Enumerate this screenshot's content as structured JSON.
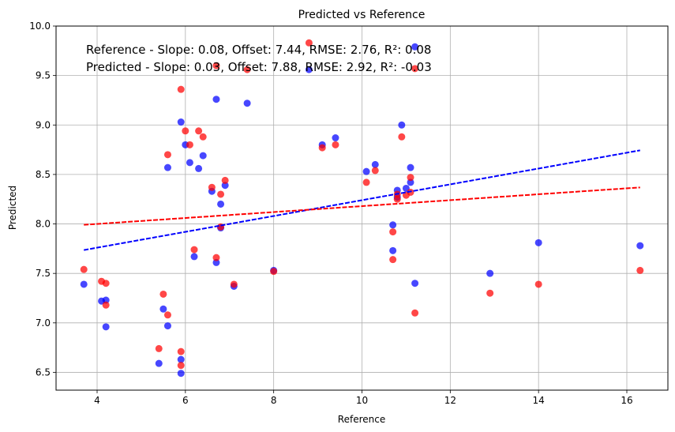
{
  "chart_data": {
    "type": "scatter",
    "title": "Predicted vs Reference",
    "xlabel": "Reference",
    "ylabel": "Predicted",
    "xlim": [
      3.07,
      16.93
    ],
    "ylim": [
      6.32,
      10.0
    ],
    "xticks": [
      4,
      6,
      8,
      10,
      12,
      14,
      16
    ],
    "yticks": [
      6.5,
      7.0,
      7.5,
      8.0,
      8.5,
      9.0,
      9.5,
      10.0
    ],
    "ytick_labels": [
      "6.5",
      "7.0",
      "7.5",
      "8.0",
      "8.5",
      "9.0",
      "9.5",
      "10.0"
    ],
    "grid": true,
    "annotations": [
      "Reference - Slope: 0.08, Offset: 7.44, RMSE: 2.76, R²: 0.08",
      "Predicted - Slope: 0.03, Offset: 7.88, RMSE: 2.92, R²: -0.03"
    ],
    "colors": {
      "reference": "#0000ff",
      "predicted": "#ff0000"
    },
    "series": [
      {
        "values": [
          [
            3.7,
            7.39
          ],
          [
            4.1,
            7.22
          ],
          [
            4.2,
            7.23
          ],
          [
            4.2,
            6.96
          ],
          [
            5.4,
            6.59
          ],
          [
            5.5,
            7.14
          ],
          [
            5.6,
            6.97
          ],
          [
            5.6,
            8.57
          ],
          [
            5.9,
            6.63
          ],
          [
            5.9,
            6.49
          ],
          [
            5.9,
            9.03
          ],
          [
            6.0,
            8.8
          ],
          [
            6.1,
            8.62
          ],
          [
            6.2,
            7.67
          ],
          [
            6.3,
            8.56
          ],
          [
            6.4,
            8.69
          ],
          [
            6.6,
            8.33
          ],
          [
            6.7,
            7.61
          ],
          [
            6.7,
            9.26
          ],
          [
            6.8,
            8.2
          ],
          [
            6.8,
            7.96
          ],
          [
            6.9,
            8.39
          ],
          [
            7.1,
            7.37
          ],
          [
            7.4,
            9.22
          ],
          [
            8.0,
            7.53
          ],
          [
            8.8,
            9.56
          ],
          [
            9.1,
            8.8
          ],
          [
            9.4,
            8.87
          ],
          [
            10.1,
            8.53
          ],
          [
            10.3,
            8.6
          ],
          [
            10.7,
            7.99
          ],
          [
            10.7,
            7.73
          ],
          [
            10.8,
            8.34
          ],
          [
            10.8,
            8.27
          ],
          [
            10.9,
            9.0
          ],
          [
            11.0,
            8.36
          ],
          [
            11.1,
            8.42
          ],
          [
            11.1,
            8.57
          ],
          [
            11.2,
            9.79
          ],
          [
            11.2,
            7.4
          ],
          [
            12.9,
            7.5
          ],
          [
            14.0,
            7.81
          ],
          [
            16.3,
            7.78
          ]
        ]
      },
      {
        "values": [
          [
            3.7,
            7.54
          ],
          [
            4.1,
            7.42
          ],
          [
            4.2,
            7.4
          ],
          [
            4.2,
            7.18
          ],
          [
            5.4,
            6.74
          ],
          [
            5.5,
            7.29
          ],
          [
            5.6,
            7.08
          ],
          [
            5.6,
            8.7
          ],
          [
            5.9,
            6.71
          ],
          [
            5.9,
            6.57
          ],
          [
            5.9,
            9.36
          ],
          [
            6.0,
            8.94
          ],
          [
            6.1,
            8.8
          ],
          [
            6.2,
            7.74
          ],
          [
            6.3,
            8.94
          ],
          [
            6.4,
            8.88
          ],
          [
            6.6,
            8.37
          ],
          [
            6.7,
            7.66
          ],
          [
            6.7,
            9.6
          ],
          [
            6.8,
            8.3
          ],
          [
            6.8,
            7.97
          ],
          [
            6.9,
            8.44
          ],
          [
            7.1,
            7.39
          ],
          [
            7.4,
            9.56
          ],
          [
            8.0,
            7.52
          ],
          [
            8.8,
            9.83
          ],
          [
            9.1,
            8.77
          ],
          [
            9.4,
            8.8
          ],
          [
            10.1,
            8.42
          ],
          [
            10.3,
            8.54
          ],
          [
            10.7,
            7.92
          ],
          [
            10.7,
            7.64
          ],
          [
            10.8,
            8.3
          ],
          [
            10.8,
            8.25
          ],
          [
            10.9,
            8.88
          ],
          [
            11.0,
            8.29
          ],
          [
            11.1,
            8.47
          ],
          [
            11.1,
            8.32
          ],
          [
            11.2,
            9.57
          ],
          [
            11.2,
            7.1
          ],
          [
            12.9,
            7.3
          ],
          [
            14.0,
            7.39
          ],
          [
            16.3,
            7.53
          ]
        ]
      }
    ],
    "fit_lines": [
      {
        "color": "#0000ff",
        "x": [
          3.7,
          16.3
        ],
        "y": [
          7.736,
          8.744
        ]
      },
      {
        "color": "#ff0000",
        "x": [
          3.7,
          16.3
        ],
        "y": [
          7.991,
          8.369
        ]
      }
    ]
  }
}
